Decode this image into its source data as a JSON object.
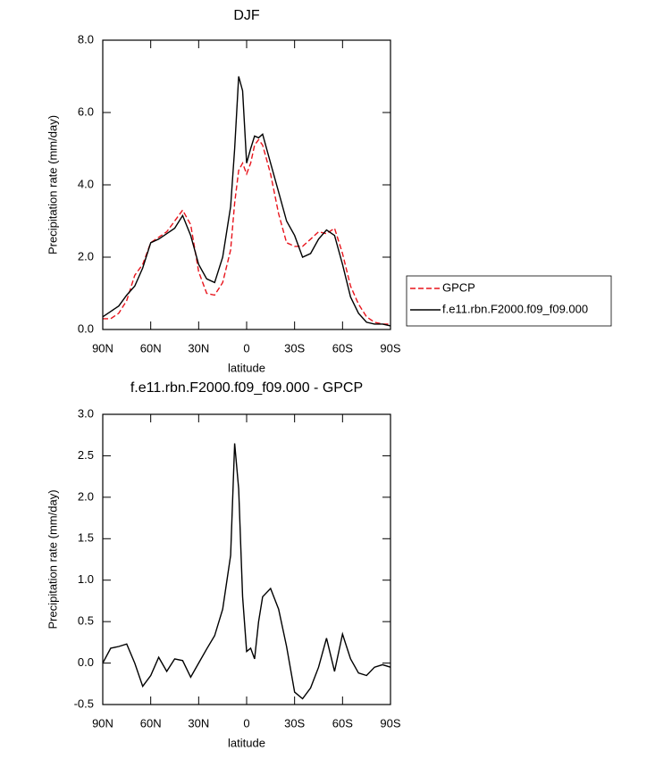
{
  "chart_data": [
    {
      "type": "line",
      "title": "DJF",
      "xlabel": "latitude",
      "ylabel": "Precipitation rate (mm/day)",
      "x": [
        90,
        85,
        80,
        75,
        70,
        65,
        60,
        55,
        50,
        45,
        40,
        35,
        30,
        25,
        20,
        15,
        10,
        7.5,
        5,
        2.5,
        0,
        -2.5,
        -5,
        -7.5,
        -10,
        -15,
        -20,
        -25,
        -30,
        -35,
        -40,
        -45,
        -50,
        -55,
        -60,
        -65,
        -70,
        -75,
        -80,
        -85,
        -90
      ],
      "xlim": [
        90,
        -90
      ],
      "xticks": [
        {
          "value": 90,
          "label": "90N"
        },
        {
          "value": 60,
          "label": "60N"
        },
        {
          "value": 30,
          "label": "30N"
        },
        0,
        {
          "value": -30,
          "label": "30S"
        },
        {
          "value": -60,
          "label": "60S"
        },
        {
          "value": -90,
          "label": "90S"
        }
      ],
      "ylim": [
        0,
        8
      ],
      "yticks": [
        {
          "value": 0,
          "label": "0.0"
        },
        {
          "value": 2,
          "label": "2.0"
        },
        {
          "value": 4,
          "label": "4.0"
        },
        {
          "value": 6,
          "label": "6.0"
        },
        {
          "value": 8,
          "label": "8.0"
        }
      ],
      "legend": "right",
      "series": [
        {
          "name": "GPCP",
          "color": "#e8141c",
          "style": "dashed",
          "values": [
            0.3,
            0.3,
            0.45,
            0.8,
            1.5,
            1.8,
            2.4,
            2.55,
            2.7,
            3.0,
            3.3,
            2.9,
            1.6,
            1.0,
            0.95,
            1.3,
            2.2,
            3.5,
            4.4,
            4.6,
            4.3,
            4.6,
            5.1,
            5.25,
            5.1,
            4.3,
            3.2,
            2.4,
            2.3,
            2.3,
            2.5,
            2.7,
            2.65,
            2.8,
            2.1,
            1.2,
            0.7,
            0.35,
            0.2,
            0.15,
            0.15
          ]
        },
        {
          "name": "f.e11.rbn.F2000.f09_f09.000",
          "color": "#000000",
          "style": "solid",
          "values": [
            0.35,
            0.5,
            0.65,
            0.95,
            1.2,
            1.7,
            2.4,
            2.5,
            2.65,
            2.8,
            3.15,
            2.6,
            1.8,
            1.4,
            1.3,
            2.0,
            3.4,
            5.0,
            7.0,
            6.6,
            4.6,
            5.0,
            5.35,
            5.3,
            5.4,
            4.6,
            3.8,
            3.0,
            2.6,
            2.0,
            2.1,
            2.5,
            2.75,
            2.6,
            1.8,
            0.9,
            0.45,
            0.2,
            0.15,
            0.15,
            0.1
          ]
        }
      ]
    },
    {
      "type": "line",
      "title": "f.e11.rbn.F2000.f09_f09.000 - GPCP",
      "xlabel": "latitude",
      "ylabel": "Precipitation rate (mm/day)",
      "x": [
        90,
        85,
        80,
        75,
        70,
        65,
        60,
        55,
        50,
        45,
        40,
        35,
        30,
        25,
        20,
        15,
        10,
        7.5,
        5,
        2.5,
        0,
        -2.5,
        -5,
        -7.5,
        -10,
        -15,
        -20,
        -25,
        -30,
        -35,
        -40,
        -45,
        -50,
        -55,
        -60,
        -65,
        -70,
        -75,
        -80,
        -85,
        -90
      ],
      "xlim": [
        90,
        -90
      ],
      "xticks": [
        {
          "value": 90,
          "label": "90N"
        },
        {
          "value": 60,
          "label": "60N"
        },
        {
          "value": 30,
          "label": "30N"
        },
        0,
        {
          "value": -30,
          "label": "30S"
        },
        {
          "value": -60,
          "label": "60S"
        },
        {
          "value": -90,
          "label": "90S"
        }
      ],
      "ylim": [
        -0.5,
        3
      ],
      "yticks": [
        -0.5,
        {
          "value": 0,
          "label": "0.0"
        },
        0.5,
        {
          "value": 1,
          "label": "1.0"
        },
        1.5,
        {
          "value": 2,
          "label": "2.0"
        },
        2.5,
        {
          "value": 3,
          "label": "3.0"
        }
      ],
      "series": [
        {
          "color": "#000000",
          "style": "solid",
          "values": [
            0.0,
            0.18,
            0.2,
            0.23,
            0.0,
            -0.28,
            -0.15,
            0.07,
            -0.1,
            0.05,
            0.03,
            -0.17,
            0.0,
            0.17,
            0.33,
            0.65,
            1.3,
            2.65,
            2.1,
            0.8,
            0.14,
            0.18,
            0.05,
            0.5,
            0.8,
            0.9,
            0.65,
            0.2,
            -0.35,
            -0.43,
            -0.3,
            -0.05,
            0.3,
            -0.1,
            0.35,
            0.05,
            -0.12,
            -0.15,
            -0.05,
            -0.02,
            -0.05
          ]
        }
      ]
    }
  ]
}
